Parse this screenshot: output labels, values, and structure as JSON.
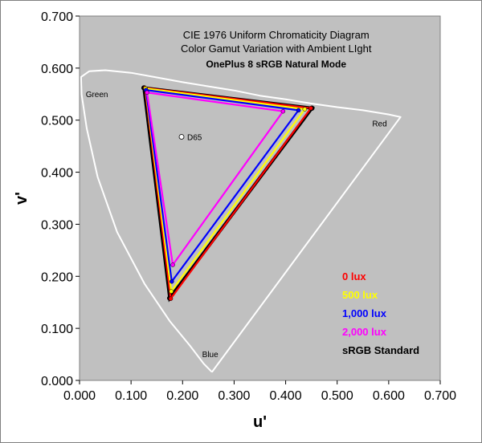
{
  "chart_data": {
    "type": "scatter",
    "title": "CIE 1976 Uniform Chromaticity Diagram",
    "subtitle": "Color Gamut Variation with Ambient LIght",
    "subtitle2": "OnePlus 8 sRGB Natural Mode",
    "xlabel": "u'",
    "ylabel": "v'",
    "xlim": [
      0,
      0.7
    ],
    "ylim": [
      0,
      0.7
    ],
    "xticks": [
      "0.000",
      "0.100",
      "0.200",
      "0.300",
      "0.400",
      "0.500",
      "0.600",
      "0.700"
    ],
    "yticks": [
      "0.000",
      "0.100",
      "0.200",
      "0.300",
      "0.400",
      "0.500",
      "0.600",
      "0.700"
    ],
    "grid": false,
    "plot_background": "#c0c0c0",
    "spectral_locus": {
      "color": "#ffffff",
      "points": [
        [
          0.257,
          0.016
        ],
        [
          0.241,
          0.032
        ],
        [
          0.214,
          0.067
        ],
        [
          0.175,
          0.114
        ],
        [
          0.126,
          0.186
        ],
        [
          0.073,
          0.285
        ],
        [
          0.035,
          0.391
        ],
        [
          0.014,
          0.484
        ],
        [
          0.004,
          0.549
        ],
        [
          0.003,
          0.583
        ],
        [
          0.019,
          0.594
        ],
        [
          0.05,
          0.596
        ],
        [
          0.1,
          0.591
        ],
        [
          0.15,
          0.582
        ],
        [
          0.2,
          0.573
        ],
        [
          0.25,
          0.565
        ],
        [
          0.3,
          0.557
        ],
        [
          0.35,
          0.547
        ],
        [
          0.4,
          0.54
        ],
        [
          0.45,
          0.532
        ],
        [
          0.5,
          0.525
        ],
        [
          0.55,
          0.519
        ],
        [
          0.6,
          0.511
        ],
        [
          0.623,
          0.506
        ],
        [
          0.257,
          0.016
        ]
      ]
    },
    "locus_labels": [
      {
        "text": "Green",
        "x": 0.012,
        "y": 0.544
      },
      {
        "text": "Red",
        "x": 0.568,
        "y": 0.488
      },
      {
        "text": "Blue",
        "x": 0.238,
        "y": 0.045
      }
    ],
    "white_point": {
      "label": "D65",
      "x": 0.198,
      "y": 0.468
    },
    "series": [
      {
        "name": "sRGB Standard",
        "color": "#000000",
        "width": 4,
        "points": [
          [
            0.451,
            0.523
          ],
          [
            0.125,
            0.562
          ],
          [
            0.175,
            0.158
          ]
        ]
      },
      {
        "name": "0 lux",
        "color": "#ff0000",
        "width": 2.2,
        "points": [
          [
            0.449,
            0.523
          ],
          [
            0.127,
            0.562
          ],
          [
            0.177,
            0.157
          ]
        ]
      },
      {
        "name": "500 lux",
        "color": "#ffff00",
        "width": 2.2,
        "points": [
          [
            0.437,
            0.521
          ],
          [
            0.128,
            0.561
          ],
          [
            0.178,
            0.171
          ]
        ]
      },
      {
        "name": "1,000 lux",
        "color": "#0000ff",
        "width": 2.2,
        "points": [
          [
            0.425,
            0.519
          ],
          [
            0.129,
            0.558
          ],
          [
            0.179,
            0.19
          ]
        ]
      },
      {
        "name": "2,000 lux",
        "color": "#ff00ff",
        "width": 2.2,
        "points": [
          [
            0.395,
            0.517
          ],
          [
            0.131,
            0.553
          ],
          [
            0.181,
            0.222
          ]
        ]
      }
    ],
    "legend": {
      "position": "bottom-right",
      "entries": [
        {
          "text": "0 lux",
          "color": "#ff0000"
        },
        {
          "text": "500 lux",
          "color": "#ffff00"
        },
        {
          "text": "1,000 lux",
          "color": "#0000ff"
        },
        {
          "text": "2,000 lux",
          "color": "#ff00ff"
        },
        {
          "text": "sRGB Standard",
          "color": "#000000"
        }
      ]
    }
  }
}
